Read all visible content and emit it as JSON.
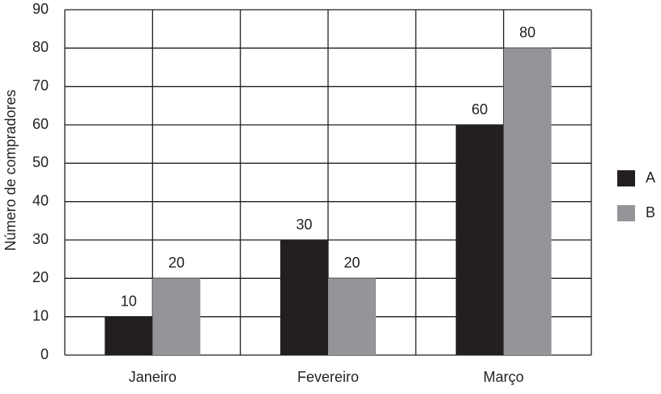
{
  "chart_data": {
    "type": "bar",
    "y_label": "Número de compradores",
    "categories": [
      "Janeiro",
      "Fevereiro",
      "Março"
    ],
    "series": [
      {
        "name": "A",
        "color": "#231f20",
        "values": [
          10,
          30,
          60
        ]
      },
      {
        "name": "B",
        "color": "#939598",
        "values": [
          20,
          20,
          80
        ]
      }
    ],
    "ylim": [
      0,
      90
    ],
    "yticks": [
      0,
      10,
      20,
      30,
      40,
      50,
      60,
      70,
      80,
      90
    ],
    "grid": true,
    "legend": "right"
  }
}
